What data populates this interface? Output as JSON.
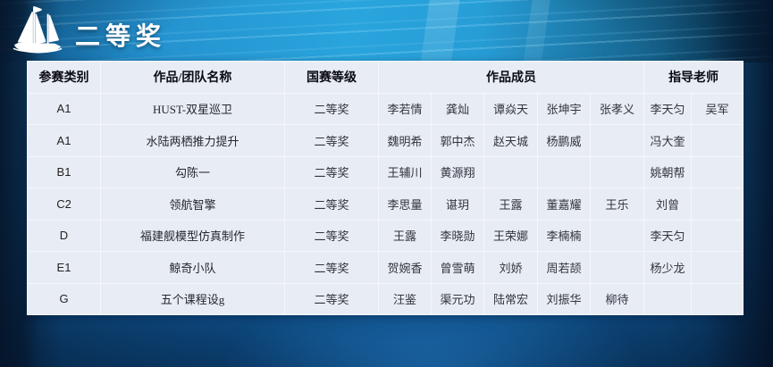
{
  "slide": {
    "title": "二等奖",
    "logo": "sailboat-icon"
  },
  "table": {
    "headers": {
      "category": "参赛类别",
      "team": "作品/团队名称",
      "award": "国赛等级",
      "members": "作品成员",
      "advisors": "指导老师"
    },
    "rows": [
      {
        "category": "A1",
        "team": "HUST-双星巡卫",
        "award": "二等奖",
        "members": [
          "李若情",
          "龚灿",
          "谭焱天",
          "张坤宇",
          "张孝义"
        ],
        "advisors": [
          "李天匀",
          "吴军"
        ]
      },
      {
        "category": "A1",
        "team": "水陆两栖推力提升",
        "award": "二等奖",
        "members": [
          "魏明希",
          "郭中杰",
          "赵天城",
          "杨鹏威",
          ""
        ],
        "advisors": [
          "冯大奎",
          ""
        ]
      },
      {
        "category": "B1",
        "team": "勾陈一",
        "award": "二等奖",
        "members": [
          "王辅川",
          "黄源翔",
          "",
          "",
          ""
        ],
        "advisors": [
          "姚朝帮",
          ""
        ]
      },
      {
        "category": "C2",
        "team": "领航智擎",
        "award": "二等奖",
        "members": [
          "李思量",
          "谌玥",
          "王露",
          "董嘉耀",
          "王乐"
        ],
        "advisors": [
          "刘曾",
          ""
        ]
      },
      {
        "category": "D",
        "team": "福建舰模型仿真制作",
        "award": "二等奖",
        "members": [
          "王露",
          "李晓勋",
          "王荣娜",
          "李楠楠",
          ""
        ],
        "advisors": [
          "李天匀",
          ""
        ]
      },
      {
        "category": "E1",
        "team": "鲸奇小队",
        "award": "二等奖",
        "members": [
          "贺婉香",
          "曾雪萌",
          "刘娇",
          "周若颉",
          ""
        ],
        "advisors": [
          "杨少龙",
          ""
        ]
      },
      {
        "category": "G",
        "team": "五个课程设g",
        "award": "二等奖",
        "members": [
          "汪鉴",
          "渠元功",
          "陆常宏",
          "刘振华",
          "柳待"
        ],
        "advisors": [
          "",
          ""
        ]
      }
    ]
  },
  "colors": {
    "title_text": "#ffffff",
    "cell_background": "#e8edf5",
    "ocean_bright": "#2aa6de",
    "ocean_mid": "#15639f",
    "ocean_dark": "#06182e"
  }
}
